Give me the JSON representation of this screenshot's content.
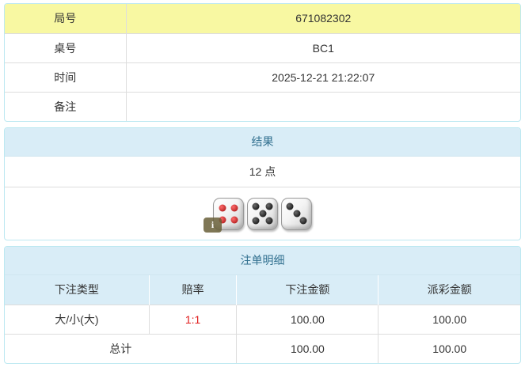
{
  "round_info": {
    "rows": [
      {
        "label": "局号",
        "value": "671082302"
      },
      {
        "label": "桌号",
        "value": "BC1"
      },
      {
        "label": "时间",
        "value": "2025-12-21 21:22:07"
      },
      {
        "label": "备注",
        "value": ""
      }
    ]
  },
  "result": {
    "title": "结果",
    "points": "12 点",
    "dice": [
      {
        "pips": 4,
        "color": "red"
      },
      {
        "pips": 5,
        "color": "black"
      },
      {
        "pips": 3,
        "color": "black"
      }
    ],
    "info_icon_label": "i"
  },
  "bets": {
    "title": "注单明细",
    "columns": [
      "下注类型",
      "赔率",
      "下注金额",
      "派彩金额"
    ],
    "rows": [
      {
        "type": "大/小(大)",
        "odds": "1:1",
        "bet_amount": "100.00",
        "payout_amount": "100.00"
      }
    ],
    "total": {
      "label": "总计",
      "bet_amount": "100.00",
      "payout_amount": "100.00"
    }
  },
  "colors": {
    "panel_border": "#bce8f1",
    "heading_bg": "#d9edf7",
    "heading_text": "#31708f",
    "highlight_yellow": "#f8f8a2",
    "odds_red": "#e01b1b",
    "row_border": "#dddddd",
    "text": "#333333"
  }
}
